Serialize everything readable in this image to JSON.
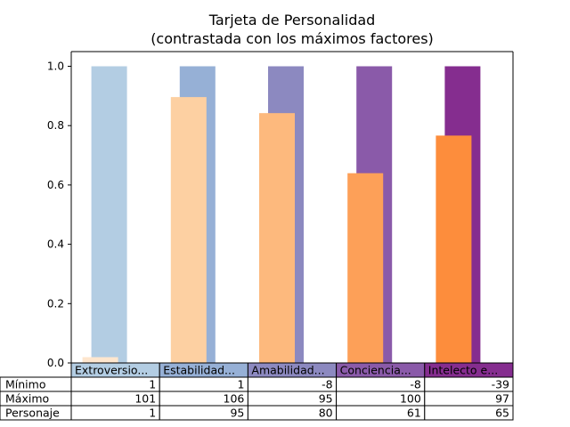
{
  "chart_data": {
    "type": "bar",
    "title": [
      "Tarjeta de Personalidad",
      "(contrastada con los máximos factores)"
    ],
    "ylim": [
      0,
      1
    ],
    "yticks": [
      "0.0",
      "0.2",
      "0.4",
      "0.6",
      "0.8",
      "1.0"
    ],
    "categories": [
      "Extroversio...",
      "Estabilidad...",
      "Amabilidad...",
      "Conciencia...",
      "Intelecto e..."
    ],
    "series": [
      {
        "values": [
          1,
          1,
          1,
          1,
          1
        ],
        "colors": [
          "#b3cde3",
          "#96b0d6",
          "#8c89c0",
          "#8a5aa9",
          "#852d8f"
        ]
      },
      {
        "values": [
          0.0196,
          0.8962,
          0.8421,
          0.6396,
          0.7664
        ],
        "colors": [
          "#fee6ce",
          "#fdd0a2",
          "#fdb97d",
          "#fda058",
          "#fd8d3c"
        ]
      }
    ],
    "table": {
      "header_colors": [
        "#b3cde3",
        "#96b0d6",
        "#8c89c0",
        "#8a5aa9",
        "#852d8f"
      ],
      "rows": [
        {
          "label": "Mínimo",
          "values": [
            "1",
            "1",
            "-8",
            "-8",
            "-39"
          ]
        },
        {
          "label": "Máximo",
          "values": [
            "101",
            "106",
            "95",
            "100",
            "97"
          ]
        },
        {
          "label": "Personaje",
          "values": [
            "1",
            "95",
            "80",
            "61",
            "65"
          ]
        }
      ]
    }
  }
}
